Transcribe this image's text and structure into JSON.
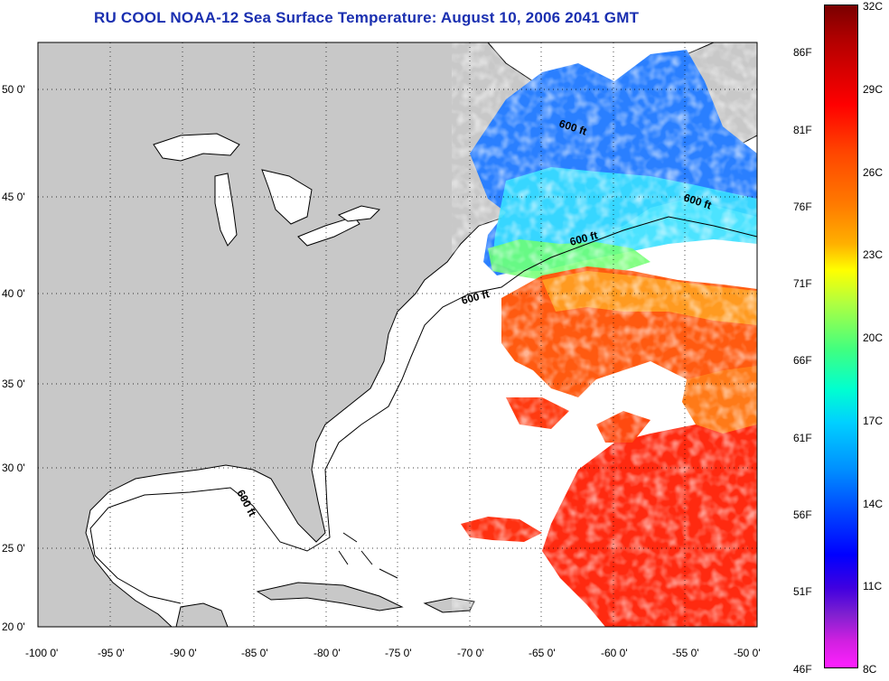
{
  "title": "RU COOL  NOAA-12  Sea Surface Temperature:  August 10, 2006 2041 GMT",
  "map": {
    "lon_labels": [
      "-100 0'",
      "-95 0'",
      "-90 0'",
      "-85 0'",
      "-80 0'",
      "-75 0'",
      "-70 0'",
      "-65 0'",
      "-60 0'",
      "-55 0'",
      "-50 0'"
    ],
    "lat_labels": [
      "50 0'",
      "45 0'",
      "40 0'",
      "35 0'",
      "30 0'",
      "25 0'",
      "20 0'"
    ],
    "contour_labels": [
      "600 ft",
      "600 ft",
      "600 ft",
      "600 ft",
      "600 ft"
    ],
    "colors": {
      "land": "#c8c8c8",
      "water": "#ffffff",
      "cloud": "#ffffff"
    }
  },
  "colorbar": {
    "fahrenheit": [
      "86F",
      "81F",
      "76F",
      "71F",
      "66F",
      "61F",
      "56F",
      "51F",
      "46F"
    ],
    "celsius": [
      "32C",
      "29C",
      "26C",
      "23C",
      "20C",
      "17C",
      "14C",
      "11C",
      "8C"
    ]
  }
}
